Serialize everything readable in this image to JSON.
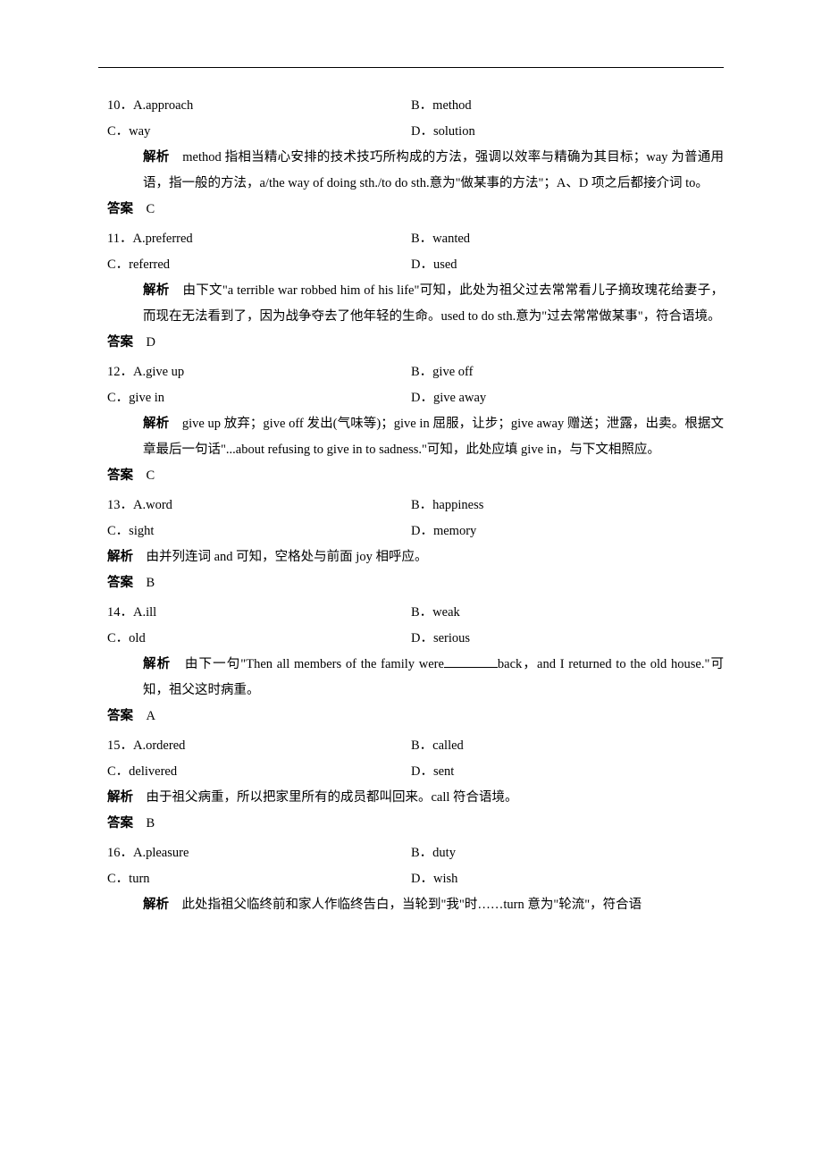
{
  "questions": [
    {
      "num": "10",
      "optA": "A.approach",
      "optB": "B．method",
      "optC": "C．way",
      "optD": "D．solution",
      "explainLabel": "解析",
      "explainText": "method 指相当精心安排的技术技巧所构成的方法，强调以效率与精确为其目标；way 为普通用语，指一般的方法，a/the way of doing sth./to do sth.意为\"做某事的方法\"；A、D 项之后都接介词 to。",
      "explainIndent": true,
      "answerLabel": "答案",
      "answer": "C"
    },
    {
      "num": "11",
      "optA": "A.preferred",
      "optB": "B．wanted",
      "optC": "C．referred",
      "optD": "D．used",
      "explainLabel": "解析",
      "explainText": "由下文\"a terrible war robbed him of his life\"可知，此处为祖父过去常常看儿子摘玫瑰花给妻子，而现在无法看到了，因为战争夺去了他年轻的生命。used to do sth.意为\"过去常常做某事\"，符合语境。",
      "explainIndent": true,
      "answerLabel": "答案",
      "answer": "D"
    },
    {
      "num": "12",
      "optA": "A.give up",
      "optB": "B．give off",
      "optC": "C．give in",
      "optD": "D．give away",
      "explainLabel": "解析",
      "explainText": "give up 放弃；give off 发出(气味等)；give in 屈服，让步；give away 赠送；泄露，出卖。根据文章最后一句话\"...about refusing to give in to sadness.\"可知，此处应填 give in，与下文相照应。",
      "explainIndent": true,
      "answerLabel": "答案",
      "answer": "C"
    },
    {
      "num": "13",
      "optA": "A.word",
      "optB": "B．happiness",
      "optC": "C．sight",
      "optD": "D．memory",
      "explainLabel": "解析",
      "explainText": "由并列连词 and 可知，空格处与前面 joy 相呼应。",
      "explainIndent": false,
      "answerLabel": "答案",
      "answer": "B"
    },
    {
      "num": "14",
      "optA": "A.ill",
      "optB": "B．weak",
      "optC": "C．old",
      "optD": "D．serious",
      "explainLabel": "解析",
      "explainPrefix": "由下一句\"Then all members of the family were",
      "explainSuffix": "back，and I returned to the old house.\"可知，祖父这时病重。",
      "explainIndent": true,
      "hasBlank": true,
      "answerLabel": "答案",
      "answer": "A"
    },
    {
      "num": "15",
      "optA": "A.ordered",
      "optB": "B．called",
      "optC": "C．delivered",
      "optD": "D．sent",
      "explainLabel": "解析",
      "explainText": "由于祖父病重，所以把家里所有的成员都叫回来。call 符合语境。",
      "explainIndent": false,
      "answerLabel": "答案",
      "answer": "B"
    },
    {
      "num": "16",
      "optA": "A.pleasure",
      "optB": "B．duty",
      "optC": "C．turn",
      "optD": "D．wish",
      "explainLabel": "解析",
      "explainText": "此处指祖父临终前和家人作临终告白，当轮到\"我\"时……turn 意为\"轮流\"，符合语",
      "explainIndent": true,
      "answerLabel": "",
      "answer": ""
    }
  ]
}
